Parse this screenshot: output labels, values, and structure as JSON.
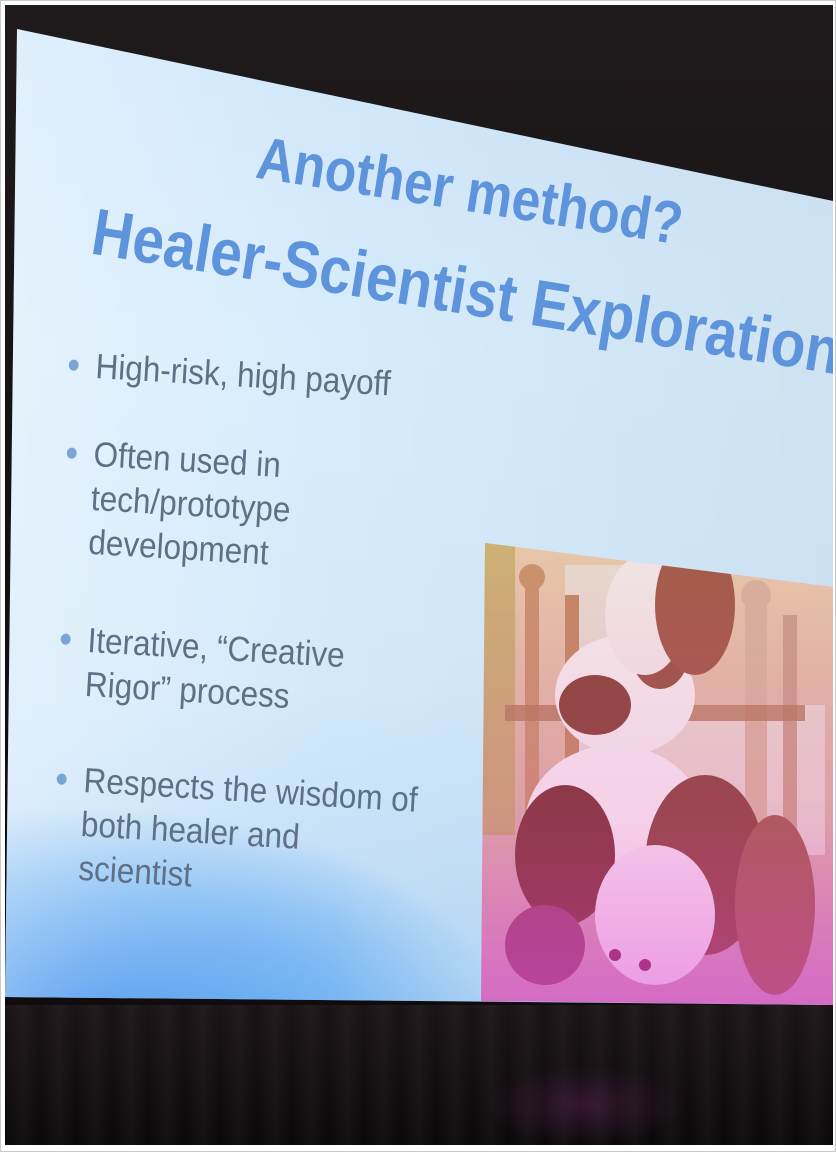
{
  "slide": {
    "title_line_1": "Another method?",
    "title_line_2": "Healer-Scientist Exploration",
    "bullets": [
      "High-risk, high payoff",
      "Often used in\ntech/prototype\ndevelopment",
      "Iterative, “Creative\nRigor” process",
      "Respects the wisdom of\nboth healer and\nscientist"
    ],
    "photo": {
      "subject": "puppies-on-chair-photo"
    }
  },
  "colors": {
    "title": "#5d94db",
    "body_text": "#5e6f86",
    "bullet": "#7aa4d6",
    "screen_background": "#d7ecfb",
    "screen_glow": "#2882eb",
    "room": "#161214"
  }
}
